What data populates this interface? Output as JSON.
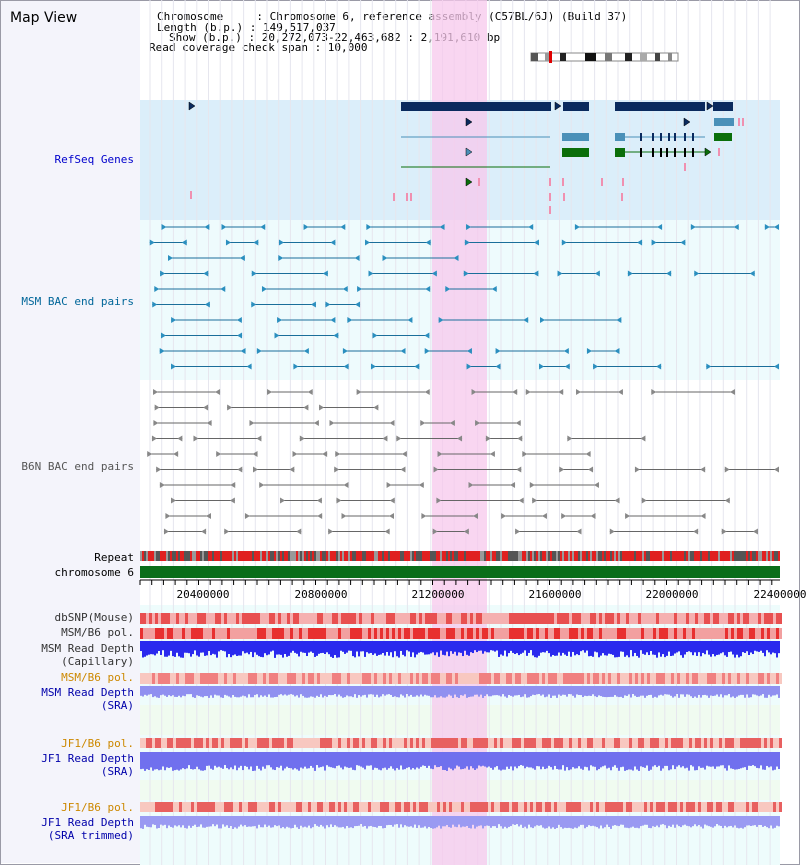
{
  "map_view_title": "Map View",
  "info": {
    "line1": "Chromosome     : Chromosome 6, reference assembly (C57BL/6J) (Build 37)",
    "line2": "Length (b.p.) : 149,517,037",
    "line3": "Show (b.p.) : 20,272,073-22,463,682 : 2,191,610 bp",
    "line4": "Read coverage check span : 10,000"
  },
  "tracks": {
    "refseq": "RefSeq Genes",
    "msm_bac": "MSM BAC end pairs",
    "b6n_bac": "B6N BAC end pairs",
    "repeat": "Repeat",
    "chromosome": "chromosome 6",
    "dbsnp": "dbSNP(Mouse)",
    "msm_b6_pol_1": "MSM/B6 pol.",
    "msm_read_depth_cap_1": "MSM Read Depth",
    "msm_read_depth_cap_2": "(Capillary)",
    "msm_b6_pol_2": "MSM/B6 pol.",
    "msm_read_depth_sra_1": "MSM Read Depth",
    "msm_read_depth_sra_2": "(SRA)",
    "jf1_b6_pol_1": "JF1/B6 pol.",
    "jf1_read_depth_sra_1": "JF1 Read Depth",
    "jf1_read_depth_sra_2": "(SRA)",
    "jf1_b6_pol_2": "JF1/B6 pol.",
    "jf1_read_depth_trim_1": "JF1 Read Depth",
    "jf1_read_depth_trim_2": "(SRA trimmed)"
  },
  "axis_ticks": [
    "20400000",
    "20800000",
    "21200000",
    "21600000",
    "22000000",
    "22400000"
  ],
  "colors": {
    "refseq_label": "#0000cc",
    "msm_label": "#006699",
    "b6n_label": "#555555",
    "orange_label": "#cc8800",
    "blue_label": "#0000aa",
    "gene_dark": "#0a2a5e",
    "gene_teal": "#4a90b8",
    "gene_green": "#0a6e0a",
    "highlight": "#f7c8ec",
    "chrom_bar": "#0a6e1a"
  }
}
